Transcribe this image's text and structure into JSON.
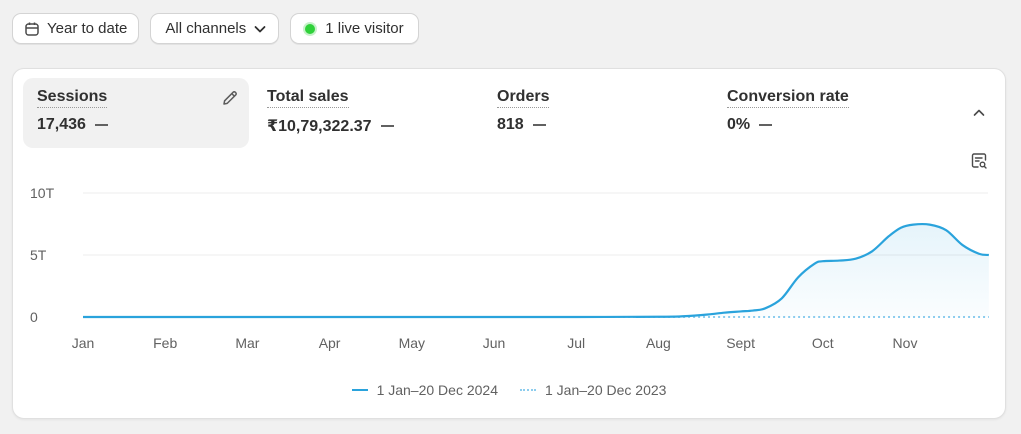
{
  "toolbar": {
    "date_range": {
      "label": "Year to date",
      "icon": "calendar-icon"
    },
    "channels": {
      "label": "All channels",
      "icon": "chevron-down-icon"
    },
    "live": {
      "label": "1 live visitor",
      "status_color": "#2fd13a"
    }
  },
  "metrics": [
    {
      "label": "Sessions",
      "value": "17,436",
      "active": true
    },
    {
      "label": "Total sales",
      "value": "₹10,79,322.37",
      "active": false
    },
    {
      "label": "Orders",
      "value": "818",
      "active": false
    },
    {
      "label": "Conversion rate",
      "value": "0%",
      "active": false
    }
  ],
  "chart_data": {
    "type": "area",
    "categories": [
      "Jan",
      "Feb",
      "Mar",
      "Apr",
      "May",
      "Jun",
      "Jul",
      "Aug",
      "Sept",
      "Oct",
      "Nov"
    ],
    "y_tick_labels": [
      "0",
      "5T",
      "10T"
    ],
    "ylim": [
      0,
      10000
    ],
    "grid": true,
    "legend_position": "bottom",
    "series": [
      {
        "name": "1 Jan–20 Dec 2024",
        "color": "#2aa3dc",
        "style": "solid",
        "filled": true,
        "x": [
          0,
          1,
          2,
          3,
          4,
          5,
          6,
          7,
          7.3,
          7.6,
          7.8,
          8,
          8.15,
          8.3,
          8.5,
          8.7,
          8.9,
          9,
          9.2,
          9.4,
          9.6,
          9.8,
          9.95,
          10.1,
          10.3,
          10.5,
          10.7,
          10.9,
          11.02
        ],
        "values": [
          0,
          0,
          0,
          0,
          0,
          0,
          0,
          20,
          60,
          200,
          350,
          450,
          520,
          700,
          1500,
          3200,
          4300,
          4500,
          4550,
          4700,
          5300,
          6500,
          7200,
          7450,
          7450,
          7000,
          5800,
          5100,
          5000
        ]
      },
      {
        "name": "1 Jan–20 Dec 2023",
        "color": "#8dcdee",
        "style": "dotted",
        "filled": false,
        "x": [
          0,
          11.02
        ],
        "values": [
          0,
          0
        ]
      }
    ]
  }
}
